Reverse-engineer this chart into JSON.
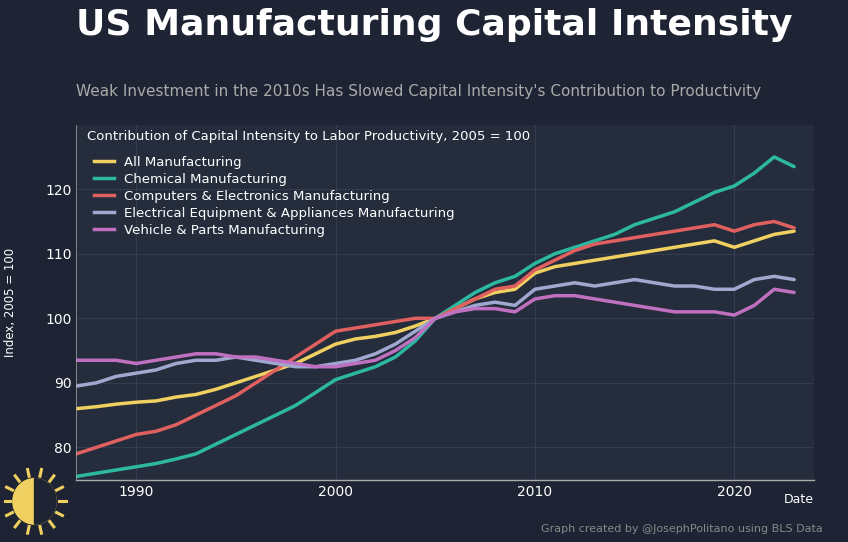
{
  "title": "US Manufacturing Capital Intensity",
  "subtitle": "Weak Investment in the 2010s Has Slowed Capital Intensity's Contribution to Productivity",
  "chart_label": "Contribution of Capital Intensity to Labor Productivity, 2005 = 100",
  "ylabel": "Index, 2005 = 100",
  "xlabel": "Date",
  "credit": "Graph created by @JosephPolitano using BLS Data",
  "background_color": "#1e2433",
  "plot_bg_color": "#252d3d",
  "grid_color": "#3a4155",
  "text_color": "#ffffff",
  "subtitle_color": "#aaaaaa",
  "credit_color": "#888888",
  "title_fontsize": 26,
  "subtitle_fontsize": 11,
  "label_fontsize": 9.5,
  "tick_fontsize": 10,
  "xlim": [
    1987,
    2024
  ],
  "ylim": [
    75,
    130
  ],
  "yticks": [
    80,
    90,
    100,
    110,
    120
  ],
  "xticks": [
    1990,
    2000,
    2010,
    2020
  ],
  "series": {
    "All Manufacturing": {
      "color": "#f0d060",
      "linewidth": 2.5,
      "years": [
        1987,
        1988,
        1989,
        1990,
        1991,
        1992,
        1993,
        1994,
        1995,
        1996,
        1997,
        1998,
        1999,
        2000,
        2001,
        2002,
        2003,
        2004,
        2005,
        2006,
        2007,
        2008,
        2009,
        2010,
        2011,
        2012,
        2013,
        2014,
        2015,
        2016,
        2017,
        2018,
        2019,
        2020,
        2021,
        2022,
        2023
      ],
      "values": [
        86.0,
        86.3,
        86.7,
        87.0,
        87.2,
        87.8,
        88.2,
        89.0,
        90.0,
        91.0,
        92.0,
        93.0,
        94.5,
        96.0,
        96.8,
        97.2,
        97.8,
        98.8,
        100,
        101.5,
        103.0,
        104.0,
        104.5,
        107.0,
        108.0,
        108.5,
        109.0,
        109.5,
        110.0,
        110.5,
        111.0,
        111.5,
        112.0,
        111.0,
        112.0,
        113.0,
        113.5
      ]
    },
    "Chemical Manufacturing": {
      "color": "#2db8a0",
      "linewidth": 2.5,
      "years": [
        1987,
        1988,
        1989,
        1990,
        1991,
        1992,
        1993,
        1994,
        1995,
        1996,
        1997,
        1998,
        1999,
        2000,
        2001,
        2002,
        2003,
        2004,
        2005,
        2006,
        2007,
        2008,
        2009,
        2010,
        2011,
        2012,
        2013,
        2014,
        2015,
        2016,
        2017,
        2018,
        2019,
        2020,
        2021,
        2022,
        2023
      ],
      "values": [
        75.5,
        76.0,
        76.5,
        77.0,
        77.5,
        78.2,
        79.0,
        80.5,
        82.0,
        83.5,
        85.0,
        86.5,
        88.5,
        90.5,
        91.5,
        92.5,
        94.0,
        96.5,
        100,
        102.0,
        104.0,
        105.5,
        106.5,
        108.5,
        110.0,
        111.0,
        112.0,
        113.0,
        114.5,
        115.5,
        116.5,
        118.0,
        119.5,
        120.5,
        122.5,
        125.0,
        123.5
      ]
    },
    "Computers & Electronics Manufacturing": {
      "color": "#e06060",
      "linewidth": 2.5,
      "years": [
        1987,
        1988,
        1989,
        1990,
        1991,
        1992,
        1993,
        1994,
        1995,
        1996,
        1997,
        1998,
        1999,
        2000,
        2001,
        2002,
        2003,
        2004,
        2005,
        2006,
        2007,
        2008,
        2009,
        2010,
        2011,
        2012,
        2013,
        2014,
        2015,
        2016,
        2017,
        2018,
        2019,
        2020,
        2021,
        2022,
        2023
      ],
      "values": [
        79.0,
        80.0,
        81.0,
        82.0,
        82.5,
        83.5,
        85.0,
        86.5,
        88.0,
        90.0,
        92.0,
        94.0,
        96.0,
        98.0,
        98.5,
        99.0,
        99.5,
        100.0,
        100,
        101.5,
        103.0,
        104.5,
        105.0,
        107.5,
        109.0,
        110.5,
        111.5,
        112.0,
        112.5,
        113.0,
        113.5,
        114.0,
        114.5,
        113.5,
        114.5,
        115.0,
        114.0
      ]
    },
    "Electrical Equipment & Appliances Manufacturing": {
      "color": "#a0a8d0",
      "linewidth": 2.5,
      "years": [
        1987,
        1988,
        1989,
        1990,
        1991,
        1992,
        1993,
        1994,
        1995,
        1996,
        1997,
        1998,
        1999,
        2000,
        2001,
        2002,
        2003,
        2004,
        2005,
        2006,
        2007,
        2008,
        2009,
        2010,
        2011,
        2012,
        2013,
        2014,
        2015,
        2016,
        2017,
        2018,
        2019,
        2020,
        2021,
        2022,
        2023
      ],
      "values": [
        89.5,
        90.0,
        91.0,
        91.5,
        92.0,
        93.0,
        93.5,
        93.5,
        94.0,
        93.5,
        93.0,
        92.5,
        92.5,
        93.0,
        93.5,
        94.5,
        96.0,
        98.0,
        100,
        101.0,
        102.0,
        102.5,
        102.0,
        104.5,
        105.0,
        105.5,
        105.0,
        105.5,
        106.0,
        105.5,
        105.0,
        105.0,
        104.5,
        104.5,
        106.0,
        106.5,
        106.0
      ]
    },
    "Vehicle & Parts Manufacturing": {
      "color": "#c070c0",
      "linewidth": 2.5,
      "years": [
        1987,
        1988,
        1989,
        1990,
        1991,
        1992,
        1993,
        1994,
        1995,
        1996,
        1997,
        1998,
        1999,
        2000,
        2001,
        2002,
        2003,
        2004,
        2005,
        2006,
        2007,
        2008,
        2009,
        2010,
        2011,
        2012,
        2013,
        2014,
        2015,
        2016,
        2017,
        2018,
        2019,
        2020,
        2021,
        2022,
        2023
      ],
      "values": [
        93.5,
        93.5,
        93.5,
        93.0,
        93.5,
        94.0,
        94.5,
        94.5,
        94.0,
        94.0,
        93.5,
        93.0,
        92.5,
        92.5,
        93.0,
        93.5,
        95.0,
        97.0,
        100,
        101.0,
        101.5,
        101.5,
        101.0,
        103.0,
        103.5,
        103.5,
        103.0,
        102.5,
        102.0,
        101.5,
        101.0,
        101.0,
        101.0,
        100.5,
        102.0,
        104.5,
        104.0
      ]
    }
  }
}
